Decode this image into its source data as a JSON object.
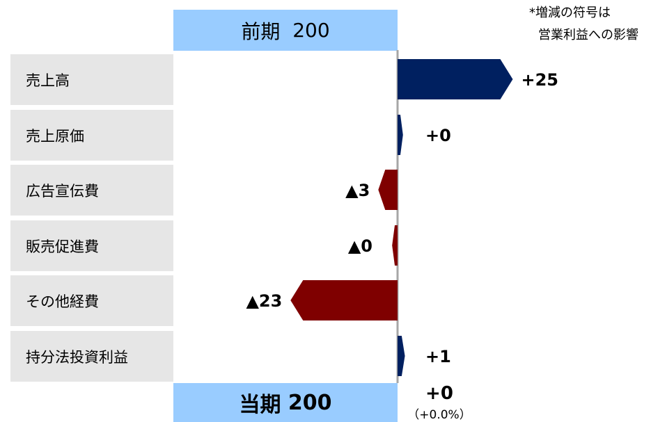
{
  "header": {
    "label": "前期",
    "value": "200"
  },
  "footer": {
    "label": "当期",
    "value": "200"
  },
  "note": {
    "line1": "*増減の符号は",
    "line2": "営業利益への影響"
  },
  "total": {
    "change_label": "+0",
    "pct_label": "（+0.0%）"
  },
  "colors": {
    "positive": "#002060",
    "negative": "#7f0000",
    "header_bg": "#99ccff",
    "label_bg": "#e6e6e6",
    "axis": "#a6a6a6"
  },
  "chart_data": {
    "type": "bar",
    "orientation": "horizontal-diverging",
    "categories": [
      "売上高",
      "売上原価",
      "広告宣伝費",
      "販売促進費",
      "その他経費",
      "持分法投資利益"
    ],
    "values": [
      25,
      0.3,
      -3,
      -0.5,
      -23,
      1
    ],
    "value_labels": [
      "+25",
      "+0",
      "▲3",
      "▲0",
      "▲23",
      "+1"
    ],
    "start_value": 200,
    "end_value": 200,
    "xlim": [
      -30,
      30
    ]
  }
}
